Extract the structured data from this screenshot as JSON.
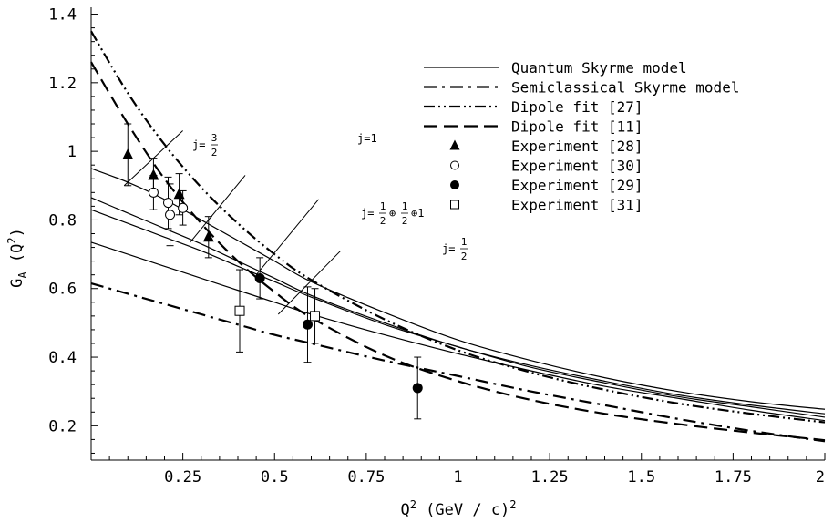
{
  "chart_data": {
    "type": "line",
    "title": "",
    "xlabel": "Q",
    "xlabel_sup": "2",
    "xlabel_unit": " (GeV / c)",
    "xlabel_unit_sup": "2",
    "ylabel": "G",
    "ylabel_sub": "A",
    "ylabel_arg": " (Q",
    "ylabel_arg_sup": "2",
    "ylabel_close": ")",
    "xlim": [
      0,
      2
    ],
    "ylim": [
      0.1,
      1.42
    ],
    "x_ticks": [
      0.25,
      0.5,
      0.75,
      1,
      1.25,
      1.5,
      1.75,
      2
    ],
    "x_tick_labels": [
      "0.25",
      "0.5",
      "0.75",
      "1",
      "1.25",
      "1.5",
      "1.75",
      "2"
    ],
    "y_ticks": [
      0.2,
      0.4,
      0.6,
      0.8,
      1,
      1.2,
      1.4
    ],
    "y_tick_labels": [
      "0.2",
      "0.4",
      "0.6",
      "0.8",
      "1",
      "1.2",
      "1.4"
    ],
    "grid": false,
    "legend_position": "top-right",
    "legend": [
      {
        "label": "Quantum Skyrme model",
        "style": "solid"
      },
      {
        "label": "Semiclassical Skyrme model",
        "style": "dash-dot"
      },
      {
        "label": "Dipole fit [27]",
        "style": "dash-dot-dot"
      },
      {
        "label": "Dipole fit [11]",
        "style": "dashed"
      },
      {
        "label": "Experiment [28]",
        "marker": "triangle"
      },
      {
        "label": "Experiment [30]",
        "marker": "open-circle"
      },
      {
        "label": "Experiment [29]",
        "marker": "filled-circle"
      },
      {
        "label": "Experiment [31]",
        "marker": "open-square"
      }
    ],
    "curves": [
      {
        "style": "solid",
        "label": "j=3/2",
        "x": [
          0,
          0.1,
          0.2,
          0.3,
          0.4,
          0.5,
          0.6,
          0.8,
          1.0,
          1.2,
          1.4,
          1.6,
          1.8,
          2.0
        ],
        "y": [
          0.95,
          0.91,
          0.86,
          0.8,
          0.74,
          0.68,
          0.62,
          0.53,
          0.45,
          0.39,
          0.34,
          0.3,
          0.27,
          0.248
        ]
      },
      {
        "style": "solid",
        "label": "j=1",
        "x": [
          0,
          0.1,
          0.2,
          0.3,
          0.4,
          0.5,
          0.6,
          0.8,
          1.0,
          1.2,
          1.4,
          1.6,
          1.8,
          2.0
        ],
        "y": [
          0.865,
          0.82,
          0.775,
          0.73,
          0.68,
          0.63,
          0.58,
          0.5,
          0.43,
          0.375,
          0.33,
          0.29,
          0.26,
          0.235
        ]
      },
      {
        "style": "solid",
        "label": "j=1/2+1/2+1",
        "x": [
          0,
          0.1,
          0.2,
          0.3,
          0.4,
          0.5,
          0.6,
          0.8,
          1.0,
          1.2,
          1.4,
          1.6,
          1.8,
          2.0
        ],
        "y": [
          0.83,
          0.79,
          0.75,
          0.71,
          0.665,
          0.62,
          0.575,
          0.495,
          0.43,
          0.37,
          0.325,
          0.285,
          0.255,
          0.225
        ]
      },
      {
        "style": "solid",
        "label": "j=1/2",
        "x": [
          0,
          0.1,
          0.2,
          0.3,
          0.4,
          0.5,
          0.6,
          0.8,
          1.0,
          1.2,
          1.4,
          1.6,
          1.8,
          2.0
        ],
        "y": [
          0.735,
          0.7,
          0.665,
          0.63,
          0.595,
          0.56,
          0.525,
          0.465,
          0.41,
          0.36,
          0.315,
          0.28,
          0.245,
          0.215
        ]
      },
      {
        "style": "dash-dot",
        "label": "Semiclassical Skyrme model",
        "x": [
          0,
          0.1,
          0.2,
          0.3,
          0.4,
          0.5,
          0.6,
          0.8,
          1.0,
          1.2,
          1.4,
          1.6,
          1.8,
          2.0
        ],
        "y": [
          0.615,
          0.585,
          0.555,
          0.525,
          0.495,
          0.465,
          0.44,
          0.39,
          0.345,
          0.3,
          0.26,
          0.22,
          0.185,
          0.155
        ]
      },
      {
        "style": "dash-dot-dot",
        "label": "Dipole fit [27]",
        "x": [
          0,
          0.1,
          0.2,
          0.3,
          0.4,
          0.5,
          0.6,
          0.8,
          1.0,
          1.2,
          1.4,
          1.6,
          1.8,
          2.0
        ],
        "y": [
          1.35,
          1.17,
          1.02,
          0.895,
          0.79,
          0.7,
          0.625,
          0.51,
          0.42,
          0.355,
          0.305,
          0.265,
          0.235,
          0.21
        ]
      },
      {
        "style": "dashed",
        "label": "Dipole fit [11]",
        "x": [
          0,
          0.1,
          0.2,
          0.3,
          0.4,
          0.5,
          0.6,
          0.8,
          1.0,
          1.2,
          1.4,
          1.6,
          1.8,
          2.0
        ],
        "y": [
          1.26,
          1.08,
          0.92,
          0.79,
          0.68,
          0.59,
          0.515,
          0.405,
          0.33,
          0.275,
          0.235,
          0.205,
          0.18,
          0.158
        ]
      }
    ],
    "curve_labels": [
      {
        "text": "j=",
        "num": "3",
        "den": "2"
      },
      {
        "text": "j=1"
      },
      {
        "text": "j=",
        "num": "1",
        "den": "2",
        "mid": "⊕",
        "num2": "1",
        "den2": "2",
        "tail": "⊕1"
      },
      {
        "text": "j=",
        "num": "1",
        "den": "2"
      }
    ],
    "experiments": [
      {
        "name": "Experiment [28]",
        "marker": "triangle",
        "points": [
          {
            "x": 0.1,
            "y": 0.99,
            "err": 0.09
          },
          {
            "x": 0.17,
            "y": 0.93,
            "err": 0.05
          },
          {
            "x": 0.24,
            "y": 0.875,
            "err": 0.06
          },
          {
            "x": 0.32,
            "y": 0.75,
            "err": 0.06
          }
        ]
      },
      {
        "name": "Experiment [30]",
        "marker": "open-circle",
        "points": [
          {
            "x": 0.17,
            "y": 0.88,
            "err": 0.05
          },
          {
            "x": 0.21,
            "y": 0.85,
            "err": 0.075
          },
          {
            "x": 0.215,
            "y": 0.815,
            "err": 0.09
          },
          {
            "x": 0.25,
            "y": 0.835,
            "err": 0.05
          }
        ]
      },
      {
        "name": "Experiment [29]",
        "marker": "filled-circle",
        "points": [
          {
            "x": 0.46,
            "y": 0.63,
            "err": 0.06
          },
          {
            "x": 0.59,
            "y": 0.495,
            "err": 0.11
          },
          {
            "x": 0.89,
            "y": 0.31,
            "err": 0.09
          }
        ]
      },
      {
        "name": "Experiment [31]",
        "marker": "open-square",
        "points": [
          {
            "x": 0.405,
            "y": 0.535,
            "err": 0.12
          },
          {
            "x": 0.61,
            "y": 0.52,
            "err": 0.08
          }
        ]
      }
    ]
  }
}
